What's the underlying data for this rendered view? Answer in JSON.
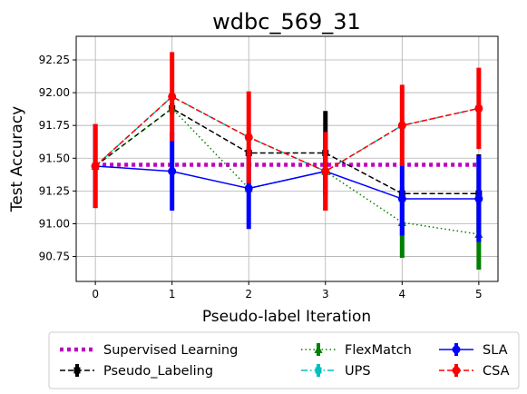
{
  "chart_data": {
    "type": "line",
    "title": "wdbc_569_31",
    "xlabel": "Pseudo-label Iteration",
    "ylabel": "Test Accuracy",
    "x": [
      0,
      1,
      2,
      3,
      4,
      5
    ],
    "xticks": [
      "0",
      "1",
      "2",
      "3",
      "4",
      "5"
    ],
    "xlim": [
      -0.25,
      5.25
    ],
    "yticks": [
      "90.75",
      "91.00",
      "91.25",
      "91.50",
      "91.75",
      "92.00",
      "92.25"
    ],
    "ylim": [
      90.56,
      92.43
    ],
    "grid": true,
    "legend_position": "bottom",
    "series": [
      {
        "name": "Supervised Learning",
        "color": "#bf00bf",
        "style": "dotted-thick",
        "marker": "none",
        "values": [
          91.45,
          91.45,
          91.45,
          91.45,
          91.45,
          91.45
        ],
        "err": [
          0,
          0,
          0,
          0,
          0,
          0
        ]
      },
      {
        "name": "Pseudo_Labeling",
        "color": "#000000",
        "style": "dashed",
        "marker": "square",
        "values": [
          91.44,
          91.88,
          91.54,
          91.54,
          91.23,
          91.23
        ],
        "err": [
          0.03,
          0.04,
          0.03,
          0.32,
          0.03,
          0.3
        ]
      },
      {
        "name": "FlexMatch",
        "color": "#008000",
        "style": "dotted",
        "marker": "triangle",
        "values": [
          91.44,
          91.88,
          91.27,
          91.4,
          91.01,
          90.92
        ],
        "err": [
          0.03,
          0.04,
          0.03,
          0.03,
          0.27,
          0.27
        ]
      },
      {
        "name": "UPS",
        "color": "#00bfbf",
        "style": "dashdot",
        "marker": "square",
        "values": [
          91.44,
          91.97,
          91.66,
          91.4,
          91.75,
          91.88
        ],
        "err": [
          0.03,
          0.03,
          0.03,
          0.03,
          0.03,
          0.03
        ]
      },
      {
        "name": "SLA",
        "color": "#0000ff",
        "style": "solid",
        "marker": "circle",
        "values": [
          91.44,
          91.4,
          91.27,
          91.4,
          91.19,
          91.19
        ],
        "err": [
          0.32,
          0.3,
          0.31,
          0.3,
          0.28,
          0.33
        ]
      },
      {
        "name": "CSA",
        "color": "#ff0000",
        "style": "dashed",
        "marker": "circle",
        "values": [
          91.44,
          91.97,
          91.66,
          91.4,
          91.75,
          91.88
        ],
        "err": [
          0.32,
          0.34,
          0.35,
          0.3,
          0.31,
          0.31
        ]
      }
    ],
    "legend_order": [
      "Supervised Learning",
      "Pseudo_Labeling",
      "FlexMatch",
      "UPS",
      "SLA",
      "CSA"
    ]
  }
}
